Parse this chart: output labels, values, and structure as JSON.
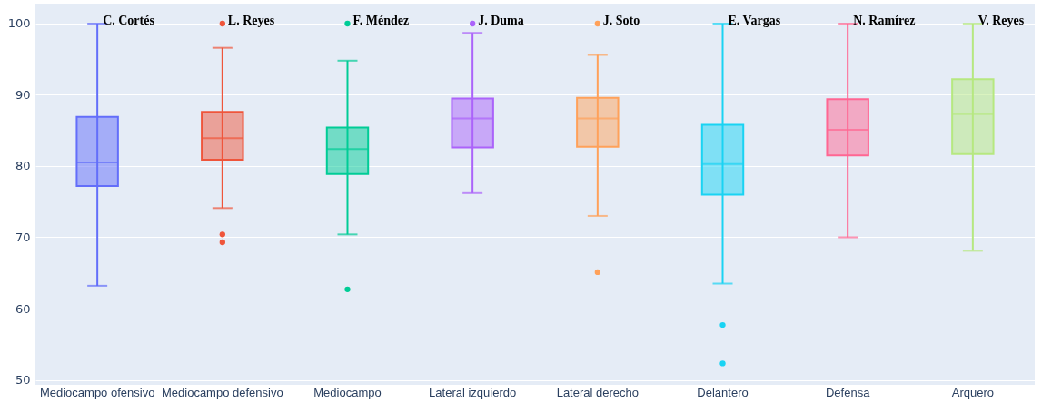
{
  "chart_data": {
    "type": "box",
    "categories": [
      "Mediocampo ofensivo",
      "Mediocampo defensivo",
      "Mediocampo",
      "Lateral izquierdo",
      "Lateral derecho",
      "Delantero",
      "Defensa",
      "Arquero"
    ],
    "colors": [
      "#636efa",
      "#ef553b",
      "#00cc96",
      "#ab63fa",
      "#ffa15a",
      "#19d3f3",
      "#ff6692",
      "#b6e880"
    ],
    "boxes": [
      {
        "low": 63.2,
        "q1": 77.2,
        "median": 80.5,
        "q3": 86.9,
        "high": 100
      },
      {
        "low": 74.1,
        "q1": 80.9,
        "median": 83.9,
        "q3": 87.6,
        "high": 96.6,
        "outliers": [
          70.4,
          69.3,
          100
        ]
      },
      {
        "low": 70.4,
        "q1": 78.9,
        "median": 82.4,
        "q3": 85.4,
        "high": 94.8,
        "outliers": [
          62.7,
          100
        ]
      },
      {
        "low": 76.2,
        "q1": 82.6,
        "median": 86.7,
        "q3": 89.5,
        "high": 98.7,
        "outliers": [
          100
        ]
      },
      {
        "low": 73.0,
        "q1": 82.7,
        "median": 86.7,
        "q3": 89.6,
        "high": 95.6,
        "outliers": [
          65.1,
          100
        ]
      },
      {
        "low": 63.5,
        "q1": 76.0,
        "median": 80.3,
        "q3": 85.8,
        "high": 100,
        "outliers": [
          57.7,
          52.3
        ]
      },
      {
        "low": 70.0,
        "q1": 81.5,
        "median": 85.1,
        "q3": 89.4,
        "high": 100
      },
      {
        "low": 68.1,
        "q1": 81.7,
        "median": 87.3,
        "q3": 92.2,
        "high": 100
      }
    ],
    "ylim": [
      49.3,
      102.8
    ],
    "yticks": [
      50,
      60,
      70,
      80,
      90,
      100
    ],
    "grid": "y",
    "annotations": [
      "C. Cortés",
      "L. Reyes",
      "F. Méndez",
      "J. Duma",
      "J. Soto",
      "E. Vargas",
      "N. Ramírez",
      "V. Reyes"
    ]
  }
}
